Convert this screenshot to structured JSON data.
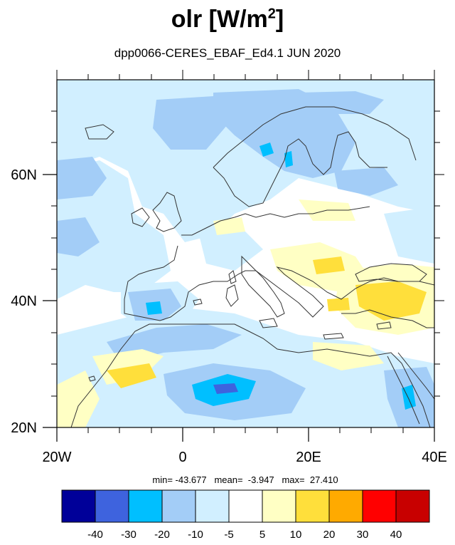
{
  "title": {
    "var": "olr [W/m",
    "exp": "2",
    "close": "]"
  },
  "subtitle": "dpp0066-CERES_EBAF_Ed4.1  JUN 2020",
  "stats": {
    "text": "min= -43.677   mean=  -3.947   max=  27.410"
  },
  "axes": {
    "lon_labels": [
      "20W",
      "0",
      "20E",
      "40E"
    ],
    "lat_labels": [
      "20N",
      "40N",
      "60N"
    ],
    "lon_range": [
      -20,
      40
    ],
    "lat_range": [
      20,
      75
    ]
  },
  "colorbar": {
    "colors": [
      "#000099",
      "#3e63de",
      "#00bfff",
      "#a3cdf7",
      "#d1efff",
      "#ffffff",
      "#ffffc4",
      "#ffdf3b",
      "#ffaa00",
      "#ff0000",
      "#c80000"
    ],
    "labels": [
      "-40",
      "-30",
      "-20",
      "-10",
      "-5",
      "5",
      "10",
      "20",
      "30",
      "40"
    ]
  },
  "field_colors": {
    "lightblue": "#d1efff",
    "midblue": "#a3cdf7",
    "cyan": "#00bfff",
    "deepblue": "#3e63de",
    "lightyellow": "#ffffc4",
    "yellow": "#ffdf3b"
  }
}
